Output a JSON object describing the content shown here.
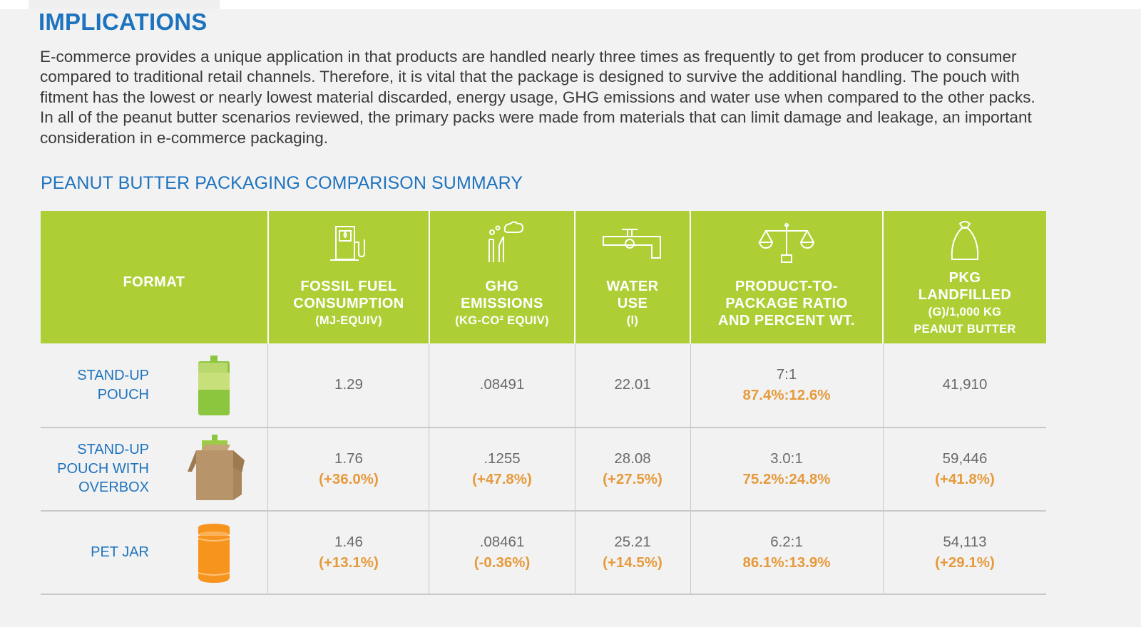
{
  "heading": "IMPLICATIONS",
  "body_lines": [
    "E-commerce provides a unique application in that products are handled nearly three times as frequently to get from producer to consumer",
    "compared to traditional retail channels. Therefore, it is vital that the package is designed to survive the additional handling. The pouch with",
    "fitment has the lowest or nearly lowest material discarded, energy usage, GHG emissions and water use when compared to the other packs.",
    "In all of the peanut butter scenarios reviewed, the primary packs were made from materials that can limit damage and leakage, an important",
    "consideration in e-commerce packaging."
  ],
  "table": {
    "title": "PEANUT BUTTER PACKAGING COMPARISON SUMMARY",
    "colors": {
      "header_bg": "#adcf35",
      "accent_orange": "#e69a3c",
      "label_blue": "#1e73be"
    },
    "headers": {
      "format": "FORMAT",
      "fossil": {
        "line1": "FOSSIL FUEL",
        "line2": "CONSUMPTION",
        "unit": "(MJ-EQUIV)",
        "icon": "fuel-pump-icon"
      },
      "ghg": {
        "line1": "GHG",
        "line2": "EMISSIONS",
        "unit": "(KG-CO² EQUIV)",
        "icon": "smokestack-icon"
      },
      "water": {
        "line1": "WATER",
        "line2": "USE",
        "unit": "(l)",
        "icon": "faucet-icon"
      },
      "ratio": {
        "line1": "PRODUCT-TO-",
        "line2": "PACKAGE RATIO",
        "line3": "AND PERCENT WT.",
        "icon": "balance-scale-icon"
      },
      "landfill": {
        "line1": "PKG",
        "line2": "LANDFILLED",
        "unit1": "(G)/1,000 KG",
        "unit2": "PEANUT BUTTER",
        "icon": "trash-bag-icon"
      }
    },
    "rows": [
      {
        "format": [
          "STAND-UP",
          "POUCH"
        ],
        "icon": "pouch-icon",
        "fossil": "1.29",
        "fossil_pct": "",
        "ghg": ".08491",
        "ghg_pct": "",
        "water": "22.01",
        "water_pct": "",
        "ratio": "7:1",
        "ratio_pct": "87.4%:12.6%",
        "landfill": "41,910",
        "landfill_pct": ""
      },
      {
        "format": [
          "STAND-UP",
          "POUCH WITH",
          "OVERBOX"
        ],
        "icon": "pouch-in-box-icon",
        "fossil": "1.76",
        "fossil_pct": "(+36.0%)",
        "ghg": ".1255",
        "ghg_pct": "(+47.8%)",
        "water": "28.08",
        "water_pct": "(+27.5%)",
        "ratio": "3.0:1",
        "ratio_pct": "75.2%:24.8%",
        "landfill": "59,446",
        "landfill_pct": "(+41.8%)"
      },
      {
        "format": [
          "PET JAR"
        ],
        "icon": "pet-jar-icon",
        "fossil": "1.46",
        "fossil_pct": "(+13.1%)",
        "ghg": ".08461",
        "ghg_pct": "(-0.36%)",
        "water": "25.21",
        "water_pct": "(+14.5%)",
        "ratio": "6.2:1",
        "ratio_pct": "86.1%:13.9%",
        "landfill": "54,113",
        "landfill_pct": "(+29.1%)"
      }
    ]
  }
}
